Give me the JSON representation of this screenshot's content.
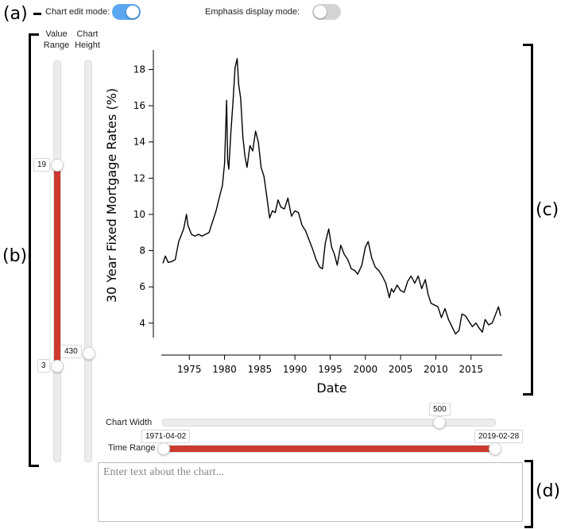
{
  "panels": {
    "a": "(a)",
    "b": "(b)",
    "c": "(c)",
    "d": "(d)"
  },
  "toggles": {
    "chart_edit": {
      "label": "Chart edit mode:",
      "on": true,
      "color": "#5aa7ee"
    },
    "emphasis": {
      "label": "Emphasis display mode:",
      "on": false,
      "color": "#d4d4d4"
    }
  },
  "left_sliders": {
    "value_range": {
      "label_line1": "Value",
      "label_line2": "Range",
      "top_value": "19",
      "bottom_value": "3"
    },
    "chart_height": {
      "label_line1": "Chart",
      "label_line2": "Height",
      "value": "430"
    }
  },
  "bottom_controls": {
    "chart_width": {
      "label": "Chart Width",
      "value": "500",
      "fraction": 0.84
    },
    "time_range": {
      "label": "Time Range",
      "start": "1971-04-02",
      "end": "2019-02-28"
    }
  },
  "textarea": {
    "placeholder": "Enter text about the chart..."
  },
  "colors": {
    "accent": "#cc3b2e",
    "toggle_on": "#5aa7ee",
    "toggle_off": "#d4d4d4"
  },
  "chart_data": {
    "type": "line",
    "xlabel": "Date",
    "ylabel": "30 Year Fixed Mortgage Rates (%)",
    "xlim": [
      1971.25,
      2019.2
    ],
    "ylim": [
      3.2,
      18.9
    ],
    "x_ticks": [
      1975,
      1980,
      1985,
      1990,
      1995,
      2000,
      2005,
      2010,
      2015
    ],
    "y_ticks": [
      4,
      6,
      8,
      10,
      12,
      14,
      16,
      18
    ],
    "grid": false,
    "series": [
      {
        "x": [
          1971.25,
          1971.6,
          1972.0,
          1972.5,
          1973.0,
          1973.5,
          1973.8,
          1974.2,
          1974.6,
          1974.8,
          1975.3,
          1975.8,
          1976.3,
          1976.8,
          1977.3,
          1977.8,
          1978.3,
          1978.8,
          1979.3,
          1979.7,
          1980.0,
          1980.3,
          1980.45,
          1980.6,
          1980.9,
          1981.2,
          1981.5,
          1981.8,
          1982.0,
          1982.3,
          1982.6,
          1982.9,
          1983.2,
          1983.6,
          1984.0,
          1984.4,
          1984.8,
          1985.2,
          1985.6,
          1986.0,
          1986.4,
          1986.8,
          1987.2,
          1987.6,
          1988.0,
          1988.5,
          1989.0,
          1989.5,
          1990.0,
          1990.5,
          1991.0,
          1991.5,
          1992.0,
          1992.5,
          1993.0,
          1993.5,
          1993.9,
          1994.3,
          1994.8,
          1995.2,
          1995.6,
          1996.0,
          1996.5,
          1997.0,
          1997.5,
          1998.0,
          1998.5,
          1998.9,
          1999.5,
          2000.0,
          2000.4,
          2000.9,
          2001.4,
          2001.9,
          2002.4,
          2002.9,
          2003.4,
          2003.7,
          2004.0,
          2004.5,
          2005.0,
          2005.5,
          2006.0,
          2006.5,
          2007.0,
          2007.5,
          2008.0,
          2008.5,
          2008.9,
          2009.3,
          2009.8,
          2010.3,
          2010.8,
          2011.3,
          2011.8,
          2012.3,
          2012.8,
          2013.3,
          2013.7,
          2014.2,
          2014.7,
          2015.2,
          2015.7,
          2016.2,
          2016.6,
          2017.0,
          2017.5,
          2018.0,
          2018.5,
          2018.9,
          2019.2
        ],
        "y": [
          7.3,
          7.7,
          7.35,
          7.4,
          7.5,
          8.5,
          8.8,
          9.2,
          10.0,
          9.4,
          8.9,
          8.8,
          8.9,
          8.8,
          8.9,
          9.0,
          9.6,
          10.2,
          11.0,
          11.6,
          12.8,
          16.3,
          13.0,
          12.5,
          14.5,
          16.2,
          18.1,
          18.6,
          17.2,
          16.4,
          14.3,
          13.2,
          12.6,
          13.8,
          13.5,
          14.6,
          14.0,
          12.6,
          12.1,
          11.0,
          9.8,
          10.2,
          10.1,
          10.8,
          10.4,
          10.3,
          10.9,
          9.9,
          10.2,
          10.1,
          9.4,
          9.1,
          8.6,
          8.1,
          7.5,
          7.1,
          7.0,
          8.4,
          9.2,
          8.2,
          7.8,
          7.2,
          8.3,
          7.8,
          7.5,
          7.0,
          6.9,
          6.7,
          7.2,
          8.2,
          8.5,
          7.6,
          7.1,
          6.9,
          6.6,
          6.2,
          5.4,
          5.9,
          5.7,
          6.1,
          5.8,
          5.7,
          6.3,
          6.6,
          6.2,
          6.6,
          5.9,
          6.4,
          5.6,
          5.1,
          5.0,
          4.9,
          4.3,
          4.8,
          4.2,
          3.8,
          3.4,
          3.6,
          4.5,
          4.4,
          4.1,
          3.8,
          4.0,
          3.7,
          3.5,
          4.2,
          3.9,
          4.0,
          4.5,
          4.9,
          4.4
        ]
      }
    ]
  }
}
